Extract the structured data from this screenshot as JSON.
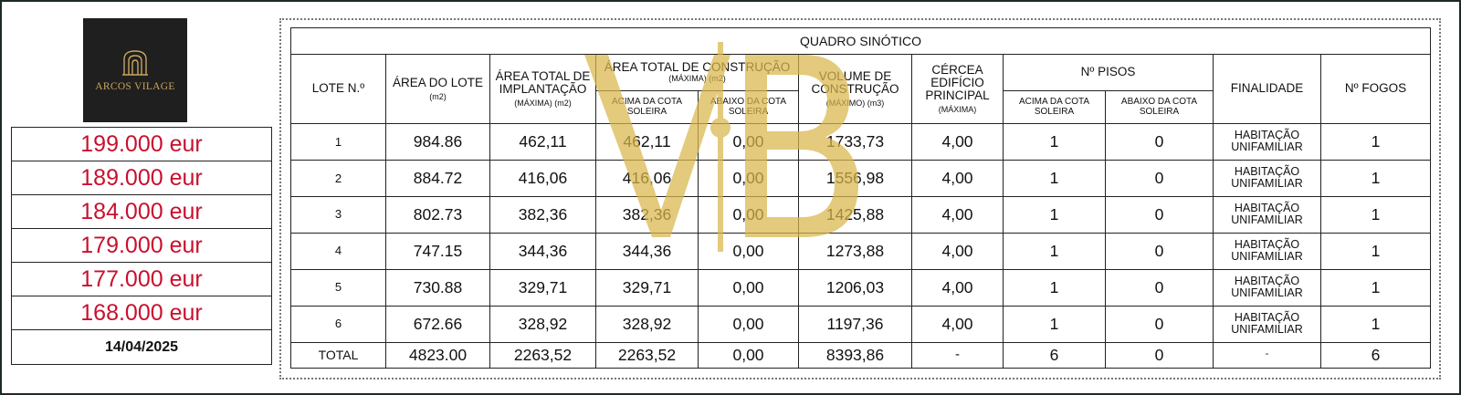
{
  "logo": {
    "name": "ARCOS VILAGE",
    "color": "#c9a55c"
  },
  "prices": [
    "199.000 eur",
    "189.000 eur",
    "184.000 eur",
    "179.000 eur",
    "177.000 eur",
    "168.000 eur"
  ],
  "date": "14/04/2025",
  "table": {
    "title": "QUADRO SINÓTICO",
    "headers": {
      "lote": "LOTE N.º",
      "area_lote": "ÁREA DO LOTE",
      "area_lote_unit": "(m2)",
      "area_implantacao": "ÁREA TOTAL DE IMPLANTAÇÃO",
      "area_implantacao_unit": "(MÁXIMA) (m2)",
      "area_construcao": "ÁREA TOTAL DE CONSTRUÇÃO",
      "area_construcao_unit": "(MÁXIMA) (m2)",
      "acima_cota": "ACIMA DA COTA SOLEIRA",
      "abaixo_cota": "ABAIXO DA COTA SOLEIRA",
      "volume": "VOLUME DE CONSTRUÇÃO",
      "volume_unit": "(MÁXIMO) (m3)",
      "cercea": "CÉRCEA EDIFÍCIO PRINCIPAL",
      "cercea_unit": "(MÁXIMA)",
      "pisos": "Nº PISOS",
      "pisos_acima": "ACIMA DA COTA SOLEIRA",
      "pisos_abaixo": "ABAIXO DA COTA SOLEIRA",
      "finalidade": "FINALIDADE",
      "fogos": "Nº FOGOS"
    },
    "rows": [
      {
        "lote": "1",
        "area_lote": "984.86",
        "implantacao": "462,11",
        "acima": "462,11",
        "abaixo": "0,00",
        "volume": "1733,73",
        "cercea": "4,00",
        "pisos_acima": "1",
        "pisos_abaixo": "0",
        "finalidade": "HABITAÇÃO UNIFAMILIAR",
        "fogos": "1"
      },
      {
        "lote": "2",
        "area_lote": "884.72",
        "implantacao": "416,06",
        "acima": "416,06",
        "abaixo": "0,00",
        "volume": "1556,98",
        "cercea": "4,00",
        "pisos_acima": "1",
        "pisos_abaixo": "0",
        "finalidade": "HABITAÇÃO UNIFAMILIAR",
        "fogos": "1"
      },
      {
        "lote": "3",
        "area_lote": "802.73",
        "implantacao": "382,36",
        "acima": "382,36",
        "abaixo": "0,00",
        "volume": "1425,88",
        "cercea": "4,00",
        "pisos_acima": "1",
        "pisos_abaixo": "0",
        "finalidade": "HABITAÇÃO UNIFAMILIAR",
        "fogos": "1"
      },
      {
        "lote": "4",
        "area_lote": "747.15",
        "implantacao": "344,36",
        "acima": "344,36",
        "abaixo": "0,00",
        "volume": "1273,88",
        "cercea": "4,00",
        "pisos_acima": "1",
        "pisos_abaixo": "0",
        "finalidade": "HABITAÇÃO UNIFAMILIAR",
        "fogos": "1"
      },
      {
        "lote": "5",
        "area_lote": "730.88",
        "implantacao": "329,71",
        "acima": "329,71",
        "abaixo": "0,00",
        "volume": "1206,03",
        "cercea": "4,00",
        "pisos_acima": "1",
        "pisos_abaixo": "0",
        "finalidade": "HABITAÇÃO UNIFAMILIAR",
        "fogos": "1"
      },
      {
        "lote": "6",
        "area_lote": "672.66",
        "implantacao": "328,92",
        "acima": "328,92",
        "abaixo": "0,00",
        "volume": "1197,36",
        "cercea": "4,00",
        "pisos_acima": "1",
        "pisos_abaixo": "0",
        "finalidade": "HABITAÇÃO UNIFAMILIAR",
        "fogos": "1"
      }
    ],
    "total": {
      "label": "TOTAL",
      "area_lote": "4823.00",
      "implantacao": "2263,52",
      "acima": "2263,52",
      "abaixo": "0,00",
      "volume": "8393,86",
      "cercea": "-",
      "pisos_acima": "6",
      "pisos_abaixo": "0",
      "finalidade": "-",
      "fogos": "6"
    }
  },
  "watermark": {
    "text": "VB",
    "color": "#d9b64a"
  },
  "colors": {
    "price": "#c8102e",
    "border": "#222222"
  }
}
